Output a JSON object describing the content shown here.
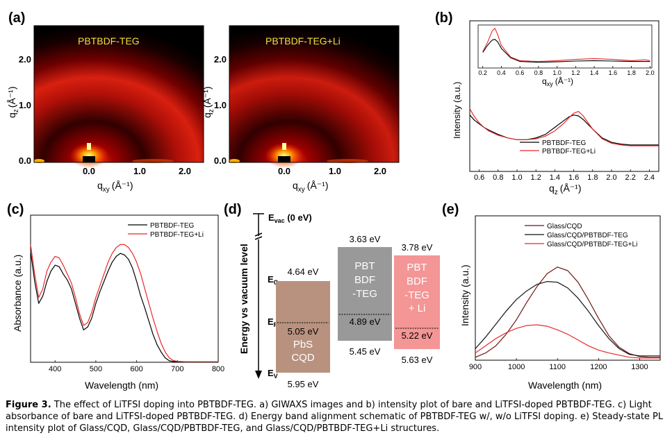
{
  "panels": {
    "a": {
      "label": "(a)",
      "left_title": "PBTBDF-TEG",
      "right_title": "PBTBDF-TEG+Li",
      "y_label_main": "q",
      "y_label_sub": "z",
      "y_label_unit": "(Å⁻¹)",
      "x_label_main": "q",
      "x_label_sub": "xy",
      "x_label_unit": "(Å⁻¹)",
      "y_ticks": [
        "2.0",
        "1.0",
        "0.0"
      ],
      "x_ticks": [
        "0.0",
        "1.0",
        "2.0"
      ]
    },
    "b": {
      "label": "(b)",
      "y_label": "Intensity (a.u.)",
      "x_label_main": "q",
      "x_label_sub": "z",
      "x_label_unit": "(Å⁻¹)",
      "inset_x_label_main": "q",
      "inset_x_label_sub": "xy",
      "inset_x_label_unit": "(Å⁻¹)"
    },
    "c": {
      "label": "(c)"
    },
    "d": {
      "label": "(d)",
      "y_label": "Energy vs vacuum level",
      "evac_main": "E",
      "evac_sub": "vac",
      "evac_tail": " (0 eV)",
      "ec_main": "E",
      "ec_sub": "C",
      "ef_main": "E",
      "ef_sub": "F",
      "ev_main": "E",
      "ev_sub": "V",
      "blocks": [
        {
          "name": "PbS CQD",
          "line1": "PbS",
          "line2": "CQD",
          "line3": "",
          "line4": "",
          "top": "4.64 eV",
          "fermi": "5.05 eV",
          "bottom": "5.95 eV",
          "color": "#b8927f"
        },
        {
          "name": "PBTBDF-TEG",
          "line1": "PBT",
          "line2": "BDF",
          "line3": "-TEG",
          "line4": "",
          "top": "3.63 eV",
          "fermi": "4.89 eV",
          "bottom": "5.45 eV",
          "color": "#999999"
        },
        {
          "name": "PBTBDF-TEG + Li",
          "line1": "PBT",
          "line2": "BDF",
          "line3": "-TEG",
          "line4": "+ Li",
          "top": "3.78 eV",
          "fermi": "5.22 eV",
          "bottom": "5.63 eV",
          "color": "#f49596"
        }
      ]
    },
    "e": {
      "label": "(e)"
    }
  },
  "chart_data": [
    {
      "panel": "b",
      "type": "line",
      "title": "",
      "xlabel": "qz (Å-1)",
      "ylabel": "Intensity (a.u.)",
      "xlim": [
        0.5,
        2.5
      ],
      "ylim": [
        0,
        1
      ],
      "ticks": [
        "0.6",
        "0.8",
        "1.0",
        "1.2",
        "1.4",
        "1.6",
        "1.8",
        "2.0",
        "2.2",
        "2.4"
      ],
      "tick_values": [
        0.6,
        0.8,
        1.0,
        1.2,
        1.4,
        1.6,
        1.8,
        2.0,
        2.2,
        2.4
      ],
      "x": [
        0.5,
        0.55,
        0.6,
        0.65,
        0.7,
        0.8,
        0.9,
        1.0,
        1.1,
        1.2,
        1.3,
        1.4,
        1.5,
        1.55,
        1.6,
        1.65,
        1.7,
        1.8,
        1.9,
        2.0,
        2.1,
        2.2,
        2.3,
        2.4,
        2.5
      ],
      "series": [
        {
          "name": "PBTBDF-TEG",
          "color": "#000000",
          "values": [
            0.64,
            0.58,
            0.54,
            0.5,
            0.47,
            0.42,
            0.38,
            0.36,
            0.36,
            0.38,
            0.42,
            0.5,
            0.58,
            0.62,
            0.64,
            0.63,
            0.59,
            0.48,
            0.38,
            0.33,
            0.31,
            0.3,
            0.3,
            0.3,
            0.3
          ]
        },
        {
          "name": "PBTBDF-TEG+Li",
          "color": "#e8282b",
          "values": [
            0.71,
            0.62,
            0.55,
            0.5,
            0.46,
            0.41,
            0.38,
            0.36,
            0.36,
            0.37,
            0.4,
            0.46,
            0.55,
            0.61,
            0.66,
            0.68,
            0.63,
            0.48,
            0.37,
            0.32,
            0.3,
            0.29,
            0.29,
            0.29,
            0.29
          ]
        }
      ],
      "inset": {
        "xlabel": "qxy (Å-1)",
        "xlim": [
          0.2,
          2.0
        ],
        "ylim": [
          0,
          1
        ],
        "ticks": [
          "0.2",
          "0.4",
          "0.6",
          "0.8",
          "1.0",
          "1.2",
          "1.4",
          "1.6",
          "1.8",
          "2.0"
        ],
        "tick_values": [
          0.2,
          0.4,
          0.6,
          0.8,
          1.0,
          1.2,
          1.4,
          1.6,
          1.8,
          2.0
        ],
        "x": [
          0.2,
          0.25,
          0.3,
          0.33,
          0.36,
          0.4,
          0.5,
          0.6,
          0.8,
          1.0,
          1.2,
          1.4,
          1.6,
          1.8,
          1.95,
          2.0
        ],
        "series": [
          {
            "name": "PBTBDF-TEG",
            "color": "#000000",
            "values": [
              0.38,
              0.55,
              0.68,
              0.7,
              0.64,
              0.48,
              0.25,
              0.16,
              0.14,
              0.15,
              0.17,
              0.18,
              0.17,
              0.16,
              0.16,
              0.16
            ]
          },
          {
            "name": "PBTBDF-TEG+Li",
            "color": "#e8282b",
            "values": [
              0.4,
              0.62,
              0.9,
              0.97,
              0.82,
              0.55,
              0.27,
              0.18,
              0.16,
              0.18,
              0.21,
              0.23,
              0.21,
              0.18,
              0.2,
              0.18
            ]
          }
        ]
      }
    },
    {
      "panel": "c",
      "type": "line",
      "title": "",
      "xlabel": "Wavelength (nm)",
      "ylabel": "Absorbance (a.u.)",
      "xlim": [
        340,
        800
      ],
      "ylim": [
        0,
        1
      ],
      "ticks": [
        "400",
        "500",
        "600",
        "700",
        "800"
      ],
      "tick_values": [
        400,
        500,
        600,
        700,
        800
      ],
      "legend": "top-right",
      "x": [
        340,
        350,
        360,
        370,
        380,
        390,
        400,
        410,
        420,
        430,
        440,
        450,
        460,
        470,
        480,
        490,
        500,
        510,
        520,
        530,
        540,
        550,
        560,
        570,
        580,
        590,
        600,
        610,
        620,
        630,
        640,
        650,
        660,
        670,
        680,
        690,
        700,
        720,
        750,
        800
      ],
      "series": [
        {
          "name": "PBTBDF-TEG",
          "color": "#000000",
          "values": [
            0.75,
            0.55,
            0.4,
            0.45,
            0.55,
            0.62,
            0.66,
            0.65,
            0.6,
            0.56,
            0.5,
            0.4,
            0.3,
            0.22,
            0.24,
            0.3,
            0.4,
            0.48,
            0.55,
            0.62,
            0.68,
            0.72,
            0.74,
            0.73,
            0.7,
            0.64,
            0.55,
            0.45,
            0.37,
            0.28,
            0.19,
            0.12,
            0.07,
            0.03,
            0.01,
            0.005,
            0.003,
            0.002,
            0.002,
            0.002
          ]
        },
        {
          "name": "PBTBDF-TEG+Li",
          "color": "#e8282b",
          "values": [
            0.8,
            0.6,
            0.44,
            0.5,
            0.62,
            0.68,
            0.72,
            0.71,
            0.66,
            0.6,
            0.54,
            0.44,
            0.33,
            0.25,
            0.27,
            0.34,
            0.44,
            0.52,
            0.6,
            0.68,
            0.74,
            0.78,
            0.8,
            0.8,
            0.78,
            0.74,
            0.68,
            0.6,
            0.5,
            0.4,
            0.3,
            0.21,
            0.13,
            0.07,
            0.03,
            0.012,
            0.006,
            0.004,
            0.004,
            0.004
          ]
        }
      ]
    },
    {
      "panel": "e",
      "type": "line",
      "title": "",
      "xlabel": "Wavelength (nm)",
      "ylabel": "Intensity (a.u.)",
      "xlim": [
        900,
        1350
      ],
      "ylim": [
        0,
        1
      ],
      "ticks": [
        "900",
        "1000",
        "1100",
        "1200",
        "1300"
      ],
      "tick_values": [
        900,
        1000,
        1100,
        1200,
        1300
      ],
      "legend": "top-right",
      "x": [
        900,
        925,
        950,
        975,
        1000,
        1025,
        1050,
        1075,
        1100,
        1125,
        1150,
        1175,
        1200,
        1225,
        1250,
        1275,
        1300,
        1325,
        1350
      ],
      "series": [
        {
          "name": "Glass/CQD",
          "color": "#6e1515",
          "values": [
            0.02,
            0.05,
            0.1,
            0.18,
            0.28,
            0.4,
            0.51,
            0.6,
            0.645,
            0.62,
            0.54,
            0.42,
            0.29,
            0.17,
            0.09,
            0.045,
            0.025,
            0.02,
            0.02
          ]
        },
        {
          "name": "Glass/CQD/PBTBDF-TEG",
          "color": "#111111",
          "values": [
            0.08,
            0.16,
            0.25,
            0.34,
            0.42,
            0.48,
            0.525,
            0.545,
            0.54,
            0.5,
            0.43,
            0.34,
            0.24,
            0.15,
            0.08,
            0.04,
            0.03,
            0.03,
            0.03
          ]
        },
        {
          "name": "Glass/CQD/PBTBDF-TEG+Li",
          "color": "#e8282b",
          "values": [
            0.05,
            0.1,
            0.15,
            0.19,
            0.22,
            0.24,
            0.245,
            0.235,
            0.21,
            0.18,
            0.14,
            0.1,
            0.07,
            0.05,
            0.035,
            0.02,
            0.015,
            0.015,
            0.015
          ]
        }
      ]
    }
  ],
  "caption": {
    "label": "Figure 3.",
    "text": " The effect of LiTFSI doping into PBTBDF-TEG. a) GIWAXS images and b) intensity plot of bare and LiTFSI-doped PBTBDF-TEG. c) Light absorbance of bare and LiTFSI-doped PBTBDF-TEG. d) Energy band alignment schematic of PBTBDF-TEG w/, w/o LiTFSI doping. e) Steady-state PL intensity plot of Glass/CQD, Glass/CQD/PBTBDF-TEG, and Glass/CQD/PBTBDF-TEG+Li structures."
  }
}
